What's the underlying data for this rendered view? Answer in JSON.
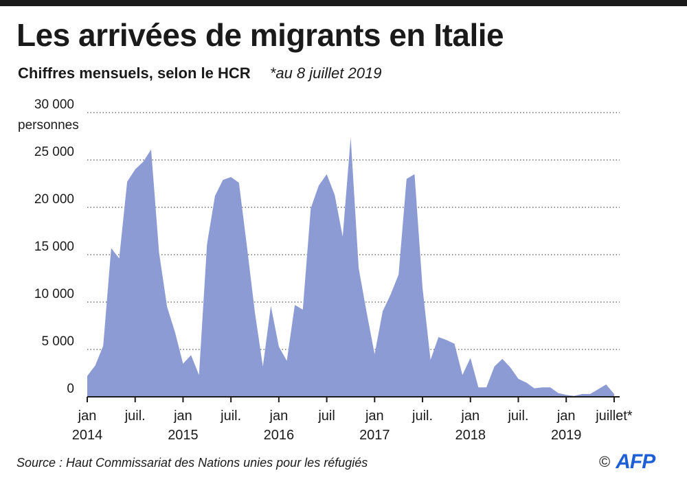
{
  "header": {
    "title": "Les arrivées de migrants en Italie",
    "subtitle": "Chiffres mensuels, selon le HCR",
    "note": "*au 8 juillet 2019"
  },
  "footer": {
    "source": "Source :  Haut Commissariat des Nations unies pour les réfugiés",
    "copyright": "©",
    "logo": "AFP"
  },
  "colors": {
    "area_fill": "#8c9bd3",
    "grid": "#555555",
    "text": "#1a1a1a",
    "logo": "#1f5fd6"
  },
  "chart_data": {
    "type": "area",
    "title": "Les arrivées de migrants en Italie",
    "subtitle": "Chiffres mensuels, selon le HCR",
    "ylabel": "personnes",
    "ylim": [
      0,
      30000
    ],
    "yticks": [
      {
        "value": 0,
        "label": "0"
      },
      {
        "value": 5000,
        "label": "5 000"
      },
      {
        "value": 10000,
        "label": "10 000"
      },
      {
        "value": 15000,
        "label": "15 000"
      },
      {
        "value": 20000,
        "label": "20 000"
      },
      {
        "value": 25000,
        "label": "25 000"
      },
      {
        "value": 30000,
        "label": "30 000"
      }
    ],
    "grid": true,
    "xticks": [
      {
        "month": "2014-01",
        "label": "jan",
        "year": "2014"
      },
      {
        "month": "2014-07",
        "label": "juil.",
        "year": ""
      },
      {
        "month": "2015-01",
        "label": "jan",
        "year": "2015"
      },
      {
        "month": "2015-07",
        "label": "juil.",
        "year": ""
      },
      {
        "month": "2016-01",
        "label": "jan",
        "year": "2016"
      },
      {
        "month": "2016-07",
        "label": "juil",
        "year": ""
      },
      {
        "month": "2017-01",
        "label": "jan",
        "year": "2017"
      },
      {
        "month": "2017-07",
        "label": "juil.",
        "year": ""
      },
      {
        "month": "2018-01",
        "label": "jan",
        "year": "2018"
      },
      {
        "month": "2018-07",
        "label": "juil.",
        "year": ""
      },
      {
        "month": "2019-01",
        "label": "jan",
        "year": "2019"
      },
      {
        "month": "2019-07",
        "label": "juillet*",
        "year": ""
      }
    ],
    "x": [
      "2014-01",
      "2014-02",
      "2014-03",
      "2014-04",
      "2014-05",
      "2014-06",
      "2014-07",
      "2014-08",
      "2014-09",
      "2014-10",
      "2014-11",
      "2014-12",
      "2015-01",
      "2015-02",
      "2015-03",
      "2015-04",
      "2015-05",
      "2015-06",
      "2015-07",
      "2015-08",
      "2015-09",
      "2015-10",
      "2015-11",
      "2015-12",
      "2016-01",
      "2016-02",
      "2016-03",
      "2016-04",
      "2016-05",
      "2016-06",
      "2016-07",
      "2016-08",
      "2016-09",
      "2016-10",
      "2016-11",
      "2016-12",
      "2017-01",
      "2017-02",
      "2017-03",
      "2017-04",
      "2017-05",
      "2017-06",
      "2017-07",
      "2017-08",
      "2017-09",
      "2017-10",
      "2017-11",
      "2017-12",
      "2018-01",
      "2018-02",
      "2018-03",
      "2018-04",
      "2018-05",
      "2018-06",
      "2018-07",
      "2018-08",
      "2018-09",
      "2018-10",
      "2018-11",
      "2018-12",
      "2019-01",
      "2019-02",
      "2019-03",
      "2019-04",
      "2019-05",
      "2019-06",
      "2019-07"
    ],
    "values": [
      2200,
      3300,
      5400,
      15700,
      14600,
      22700,
      24000,
      24800,
      26100,
      15200,
      9500,
      6800,
      3500,
      4400,
      2300,
      16100,
      21200,
      22900,
      23200,
      22600,
      15900,
      8900,
      3200,
      9600,
      5300,
      3800,
      9700,
      9200,
      19900,
      22300,
      23500,
      21300,
      16900,
      27400,
      13600,
      8900,
      4500,
      9000,
      10800,
      12900,
      23000,
      23500,
      11500,
      3900,
      6300,
      6000,
      5600,
      2300,
      4100,
      1000,
      1000,
      3200,
      4000,
      3100,
      1900,
      1500,
      900,
      1000,
      1000,
      400,
      200,
      100,
      300,
      300,
      800,
      1300,
      300
    ]
  }
}
